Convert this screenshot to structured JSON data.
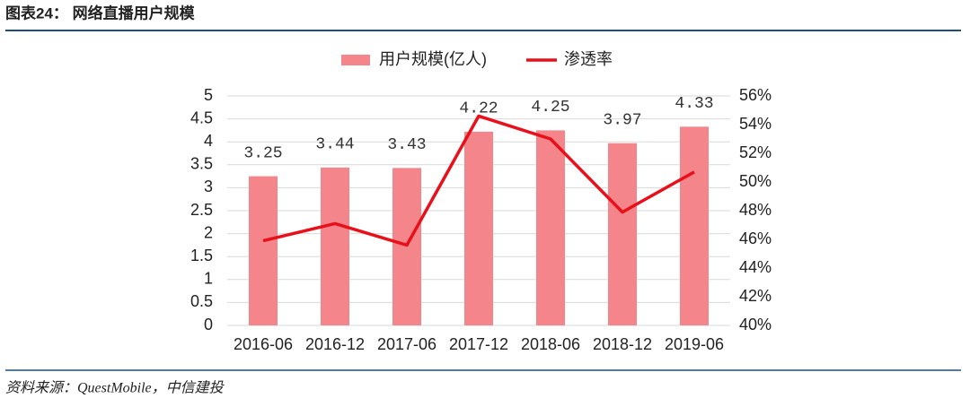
{
  "chart_data": {
    "type": "combo",
    "title": "图表24：  网络直播用户规模",
    "source": "资料来源：QuestMobile，中信建投",
    "categories": [
      "2016-06",
      "2016-12",
      "2017-06",
      "2017-12",
      "2018-06",
      "2018-12",
      "2019-06"
    ],
    "series": [
      {
        "name": "用户规模(亿人)",
        "type": "bar",
        "color": "#f4858a",
        "values": [
          3.25,
          3.44,
          3.43,
          4.22,
          4.25,
          3.97,
          4.33
        ]
      },
      {
        "name": "渗透率",
        "type": "line",
        "axis": "y2",
        "color": "#e8101a",
        "values": [
          45.9,
          47.1,
          45.6,
          54.6,
          53.0,
          47.9,
          50.7
        ]
      }
    ],
    "ylim": [
      0,
      5
    ],
    "yticks": [
      0,
      0.5,
      1,
      1.5,
      2,
      2.5,
      3,
      3.5,
      4,
      4.5,
      5
    ],
    "y2lim": [
      40,
      56
    ],
    "y2ticks": [
      {
        "value": 40,
        "label": "40%"
      },
      {
        "value": 42,
        "label": "42%"
      },
      {
        "value": 44,
        "label": "44%"
      },
      {
        "value": 46,
        "label": "46%"
      },
      {
        "value": 48,
        "label": "48%"
      },
      {
        "value": 50,
        "label": "50%"
      },
      {
        "value": 52,
        "label": "52%"
      },
      {
        "value": 54,
        "label": "54%"
      },
      {
        "value": 56,
        "label": "56%"
      }
    ],
    "grid": true,
    "legend": "top"
  }
}
